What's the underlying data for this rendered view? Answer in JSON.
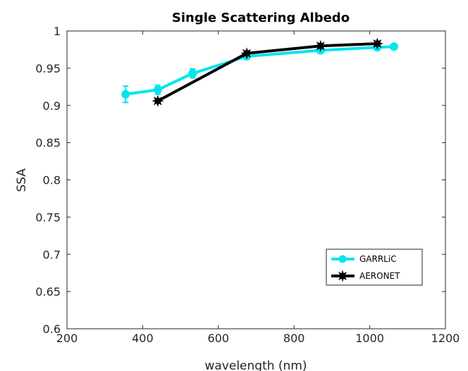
{
  "chart_data": {
    "type": "line",
    "title": "Single Scattering Albedo",
    "xlabel": "wavelength  (nm)",
    "ylabel": "SSA",
    "xlim": [
      200,
      1200
    ],
    "ylim": [
      0.6,
      1.0
    ],
    "xticks": [
      200,
      400,
      600,
      800,
      1000,
      1200
    ],
    "yticks": [
      0.6,
      0.65,
      0.7,
      0.75,
      0.8,
      0.85,
      0.9,
      0.95,
      1.0
    ],
    "xtick_labels": [
      "200",
      "400",
      "600",
      "800",
      "1000",
      "1200"
    ],
    "ytick_labels": [
      "0.6",
      "0.65",
      "0.7",
      "0.75",
      "0.8",
      "0.85",
      "0.9",
      "0.95",
      "1"
    ],
    "grid": false,
    "legend_position": "bottom-right",
    "series": [
      {
        "name": "GARRLiC",
        "color": "#00e5ee",
        "marker": "circle",
        "x": [
          355,
          440,
          532,
          675,
          870,
          1020,
          1064
        ],
        "y": [
          0.915,
          0.921,
          0.943,
          0.966,
          0.974,
          0.978,
          0.979
        ],
        "err": [
          0.011,
          0.006,
          0.006,
          0.004,
          0.003,
          0.003,
          0.002
        ]
      },
      {
        "name": "AERONET",
        "color": "#000000",
        "marker": "star",
        "x": [
          440,
          675,
          870,
          1020
        ],
        "y": [
          0.906,
          0.97,
          0.98,
          0.983
        ]
      }
    ]
  }
}
